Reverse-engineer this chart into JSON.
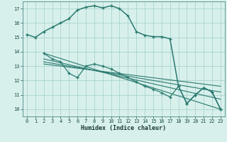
{
  "main_curve_x": [
    0,
    1,
    2,
    3,
    4,
    5,
    6,
    7,
    8,
    9,
    10,
    11,
    12,
    13,
    14,
    15,
    16,
    17,
    18,
    19,
    20,
    21,
    22,
    23
  ],
  "main_curve_y": [
    15.2,
    15.0,
    15.4,
    15.7,
    16.0,
    16.3,
    16.9,
    17.1,
    17.2,
    17.05,
    17.2,
    17.0,
    16.5,
    15.4,
    15.15,
    15.05,
    15.05,
    14.9,
    11.6,
    10.4,
    11.0,
    11.5,
    11.2,
    10.0
  ],
  "reg_lines": [
    {
      "x": [
        2,
        23
      ],
      "y": [
        13.9,
        10.0
      ]
    },
    {
      "x": [
        2,
        23
      ],
      "y": [
        13.5,
        10.7
      ]
    },
    {
      "x": [
        2,
        23
      ],
      "y": [
        13.3,
        11.2
      ]
    },
    {
      "x": [
        2,
        23
      ],
      "y": [
        13.15,
        11.6
      ]
    }
  ],
  "lower_curve_x": [
    2,
    3,
    4,
    5,
    6,
    7,
    8,
    9,
    10,
    11,
    12,
    13,
    14,
    15,
    16,
    17,
    18,
    19,
    20,
    21,
    22,
    23
  ],
  "lower_curve_y": [
    13.9,
    13.5,
    13.3,
    12.5,
    12.2,
    13.0,
    13.15,
    13.0,
    12.8,
    12.5,
    12.2,
    11.9,
    11.6,
    11.4,
    11.15,
    10.85,
    11.6,
    10.4,
    11.0,
    11.5,
    11.2,
    10.0
  ],
  "color": "#2a7a6f",
  "bg_color": "#d8f0ec",
  "grid_color": "#aad4ce",
  "xlabel": "Humidex (Indice chaleur)",
  "ylim": [
    9.5,
    17.5
  ],
  "xlim": [
    -0.5,
    23.5
  ],
  "yticks": [
    10,
    11,
    12,
    13,
    14,
    15,
    16,
    17
  ],
  "xticks": [
    0,
    1,
    2,
    3,
    4,
    5,
    6,
    7,
    8,
    9,
    10,
    11,
    12,
    13,
    14,
    15,
    16,
    17,
    18,
    19,
    20,
    21,
    22,
    23
  ]
}
